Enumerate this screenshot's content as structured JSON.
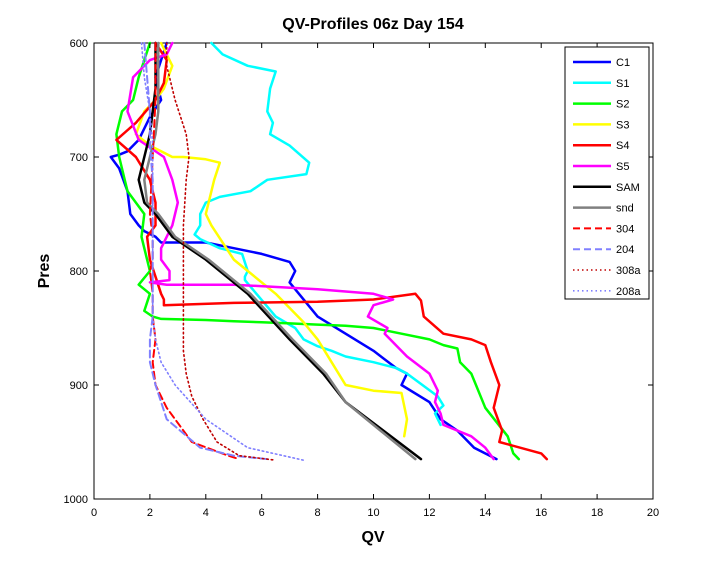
{
  "chart_data": {
    "type": "line",
    "title": "QV-Profiles 06z Day 154",
    "xlabel": "QV",
    "ylabel": "Pres",
    "xlim": [
      0,
      20
    ],
    "ylim": [
      600,
      1000
    ],
    "y_reversed": true,
    "xticks": [
      0,
      2,
      4,
      6,
      8,
      10,
      12,
      14,
      16,
      18,
      20
    ],
    "yticks": [
      600,
      700,
      800,
      900,
      1000
    ],
    "grid": false,
    "legend_position": "top-right",
    "series": [
      {
        "name": "C1",
        "color": "#0000ff",
        "style": "solid",
        "width": 2.5,
        "x": [
          2.6,
          2.2,
          2.4,
          2.0,
          1.6,
          1.2,
          0.9,
          0.6,
          0.9,
          1.2,
          1.3,
          1.6,
          1.8,
          2.2,
          2.4,
          4.0,
          5.0,
          6.0,
          7.0,
          7.2,
          7.0,
          8.0,
          9.0,
          10.0,
          10.8,
          11.2,
          11.0,
          12.0,
          12.4,
          13.0,
          13.6,
          14.4
        ],
        "y": [
          600,
          630,
          650,
          665,
          685,
          695,
          698,
          700,
          710,
          730,
          750,
          760,
          765,
          770,
          775,
          775,
          780,
          785,
          792,
          800,
          810,
          840,
          855,
          870,
          885,
          890,
          900,
          915,
          930,
          940,
          955,
          965
        ]
      },
      {
        "name": "S1",
        "color": "#00ffff",
        "style": "solid",
        "width": 2.5,
        "x": [
          4.2,
          4.6,
          5.5,
          6.5,
          6.3,
          6.2,
          6.4,
          6.3,
          7.0,
          7.7,
          7.6,
          6.2,
          5.6,
          4.5,
          4.0,
          3.8,
          3.8,
          3.6,
          3.8,
          4.5,
          5.3,
          5.5,
          5.4,
          5.4,
          6.5,
          7.2,
          7.5,
          8.0,
          8.5,
          9.0,
          10.0,
          10.8,
          11.2,
          12.3,
          12.5,
          12.2,
          12.4
        ],
        "y": [
          600,
          610,
          620,
          625,
          640,
          660,
          670,
          680,
          690,
          705,
          715,
          720,
          730,
          735,
          740,
          750,
          760,
          768,
          772,
          780,
          785,
          800,
          805,
          808,
          840,
          850,
          860,
          866,
          870,
          875,
          880,
          885,
          890,
          910,
          918,
          925,
          935
        ]
      },
      {
        "name": "S2",
        "color": "#00ff00",
        "style": "solid",
        "width": 2.5,
        "x": [
          2.0,
          1.6,
          1.4,
          1.0,
          0.8,
          0.9,
          1.1,
          1.2,
          1.5,
          1.8,
          1.7,
          2.0,
          1.6,
          2.0,
          1.8,
          2.1,
          2.4,
          4.0,
          5.0,
          6.0,
          7.0,
          8.0,
          9.0,
          10.0,
          11.0,
          12.0,
          12.5,
          13.0,
          13.1,
          13.5,
          14.0,
          14.8,
          15.0,
          15.2
        ],
        "y": [
          600,
          630,
          650,
          660,
          680,
          700,
          720,
          730,
          740,
          750,
          770,
          800,
          812,
          820,
          835,
          840,
          842,
          843,
          844,
          845,
          846,
          847,
          848,
          850,
          855,
          860,
          865,
          868,
          880,
          890,
          920,
          945,
          960,
          965
        ]
      },
      {
        "name": "S3",
        "color": "#ffff00",
        "style": "solid",
        "width": 2.5,
        "x": [
          2.4,
          2.8,
          2.5,
          2.2,
          1.8,
          1.5,
          2.0,
          2.4,
          2.8,
          3.2,
          4.0,
          4.5,
          4.3,
          4.0,
          4.2,
          5.0,
          6.5,
          7.5,
          8.0,
          8.5,
          9.0,
          10.0,
          11.0,
          11.2,
          11.1
        ],
        "y": [
          600,
          620,
          640,
          650,
          660,
          680,
          690,
          695,
          700,
          700,
          702,
          705,
          720,
          750,
          760,
          790,
          820,
          845,
          860,
          880,
          900,
          905,
          907,
          930,
          945
        ]
      },
      {
        "name": "S4",
        "color": "#ff0000",
        "style": "solid",
        "width": 2.5,
        "x": [
          2.2,
          2.6,
          2.5,
          2.2,
          1.5,
          0.8,
          1.5,
          2.0,
          2.2,
          2.2,
          1.9,
          2.0,
          2.2,
          2.4,
          2.5,
          2.5,
          5.0,
          8.0,
          10.0,
          11.5,
          11.7,
          11.8,
          12.5,
          13.5,
          14.0,
          14.2,
          14.5,
          14.3,
          14.6,
          14.5,
          16.0,
          16.2
        ],
        "y": [
          600,
          615,
          635,
          650,
          670,
          685,
          700,
          720,
          740,
          760,
          770,
          790,
          805,
          820,
          825,
          830,
          828,
          827,
          825,
          820,
          826,
          840,
          855,
          860,
          865,
          880,
          900,
          920,
          940,
          950,
          960,
          965
        ]
      },
      {
        "name": "S5",
        "color": "#ff00ff",
        "style": "solid",
        "width": 2.5,
        "x": [
          2.8,
          2.6,
          2.0,
          1.4,
          1.2,
          1.6,
          2.5,
          2.8,
          3.0,
          2.8,
          2.6,
          2.4,
          2.4,
          2.7,
          2.7,
          2.0,
          2.6,
          5.0,
          8.0,
          10.0,
          10.7,
          10.0,
          9.8,
          10.5,
          10.4,
          11.2,
          12.0,
          12.3,
          12.2,
          12.4,
          12.5,
          13.5,
          14.0,
          14.3
        ],
        "y": [
          600,
          610,
          615,
          630,
          660,
          685,
          700,
          720,
          740,
          760,
          770,
          780,
          790,
          800,
          808,
          810,
          812,
          812,
          816,
          820,
          825,
          830,
          840,
          850,
          855,
          875,
          890,
          905,
          915,
          925,
          935,
          945,
          955,
          965
        ]
      },
      {
        "name": "SAM",
        "color": "#000000",
        "style": "solid",
        "width": 2.5,
        "x": [
          2.2,
          2.2,
          2.1,
          2.0,
          1.8,
          1.6,
          1.8,
          2.2,
          2.8,
          4.0,
          5.5,
          7.0,
          8.2,
          9.0,
          11.7
        ],
        "y": [
          600,
          640,
          660,
          680,
          700,
          720,
          740,
          750,
          770,
          790,
          820,
          860,
          890,
          915,
          965
        ]
      },
      {
        "name": "snd",
        "color": "#808080",
        "style": "solid",
        "width": 2.5,
        "x": [
          2.3,
          2.3,
          2.3,
          2.2,
          2.0,
          1.8,
          1.9,
          2.3,
          2.9,
          4.1,
          5.6,
          7.1,
          8.3,
          9.0,
          11.5
        ],
        "y": [
          600,
          640,
          660,
          680,
          700,
          720,
          740,
          750,
          770,
          790,
          820,
          860,
          890,
          915,
          965
        ]
      },
      {
        "name": "304",
        "color": "#ff0000",
        "style": "dashed",
        "width": 2.0,
        "x": [
          2.2,
          2.2,
          2.1,
          2.0,
          2.1,
          2.1,
          2.0,
          2.1,
          2.1,
          2.2,
          2.1,
          2.2,
          2.6,
          3.5,
          4.8,
          5.2
        ],
        "y": [
          600,
          650,
          700,
          750,
          770,
          790,
          800,
          820,
          840,
          860,
          880,
          900,
          920,
          950,
          962,
          965
        ]
      },
      {
        "name": "204",
        "color": "#8080ff",
        "style": "dashed",
        "width": 2.0,
        "x": [
          1.8,
          1.9,
          2.0,
          2.0,
          2.1,
          2.1,
          2.1,
          2.1,
          2.1,
          2.1,
          2.0,
          2.0,
          2.2,
          2.6,
          3.8,
          5.0,
          6.2
        ],
        "y": [
          600,
          630,
          660,
          690,
          720,
          750,
          780,
          800,
          820,
          840,
          860,
          880,
          900,
          930,
          955,
          962,
          965
        ]
      },
      {
        "name": "308a",
        "color": "#c00000",
        "style": "dotted",
        "width": 1.6,
        "x": [
          2.6,
          2.6,
          2.9,
          3.3,
          3.4,
          3.3,
          3.2,
          3.2,
          3.2,
          3.2,
          3.3,
          3.5,
          3.9,
          4.4,
          5.2,
          6.5
        ],
        "y": [
          600,
          620,
          650,
          680,
          700,
          720,
          760,
          800,
          840,
          870,
          890,
          910,
          930,
          950,
          962,
          966
        ]
      },
      {
        "name": "208a",
        "color": "#8080ff",
        "style": "dotted",
        "width": 1.6,
        "x": [
          1.7,
          1.8,
          2.0,
          2.1,
          2.1,
          2.1,
          2.1,
          2.1,
          2.1,
          2.1,
          2.2,
          2.4,
          2.9,
          4.0,
          5.5,
          7.5
        ],
        "y": [
          600,
          630,
          660,
          690,
          720,
          750,
          780,
          800,
          820,
          840,
          860,
          880,
          900,
          930,
          955,
          966
        ]
      }
    ]
  }
}
